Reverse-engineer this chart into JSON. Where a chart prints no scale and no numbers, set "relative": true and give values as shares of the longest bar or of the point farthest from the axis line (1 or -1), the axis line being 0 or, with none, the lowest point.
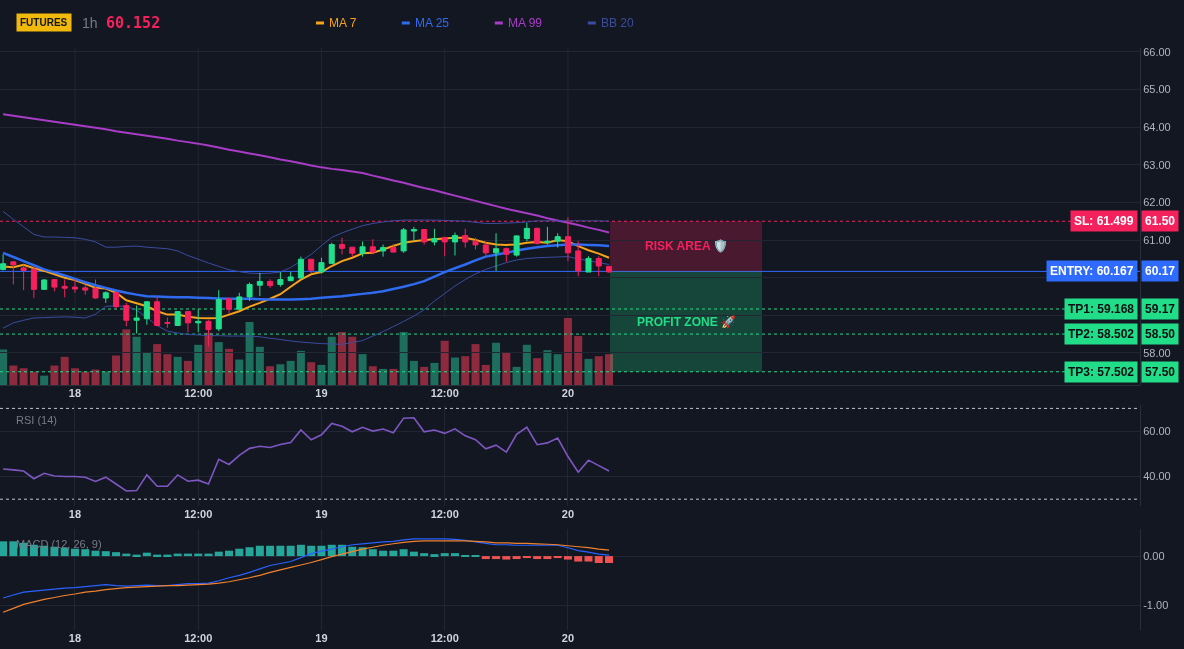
{
  "chart_data": [
    {
      "type": "bar",
      "relative": true,
      "tick_labels": false,
      "categories": [
        null,
        null,
        null,
        null,
        null,
        null,
        null,
        null,
        null,
        null,
        null,
        null,
        null,
        null,
        null,
        null,
        null,
        null,
        null,
        null,
        null,
        null,
        null,
        null,
        null,
        null,
        null,
        null,
        null,
        null,
        null,
        null,
        null,
        null,
        null,
        null,
        null,
        null,
        null,
        null,
        null,
        null,
        null,
        null,
        null,
        null,
        null,
        null,
        null,
        null,
        null,
        null,
        null,
        null,
        null,
        null,
        null,
        null,
        null,
        null
      ],
      "values": [
        0.53,
        0.29,
        0.25,
        0.2,
        0.14,
        0.29,
        0.42,
        0.25,
        0.2,
        0.23,
        0.2,
        0.44,
        0.83,
        0.72,
        0.49,
        0.61,
        0.46,
        0.42,
        0.36,
        0.6,
        0.78,
        0.64,
        0.54,
        0.38,
        0.94,
        0.57,
        0.28,
        0.31,
        0.36,
        0.51,
        0.34,
        0.3,
        0.72,
        0.79,
        0.72,
        0.46,
        0.28,
        0.24,
        0.24,
        0.79,
        0.36,
        0.27,
        0.33,
        0.66,
        0.41,
        0.43,
        0.61,
        0.3,
        0.63,
        0.48,
        0.27,
        0.6,
        0.4,
        0.52,
        0.46,
        1,
        0.73,
        0.39,
        0.43,
        0.46
      ],
      "colors": [
        "#1e6e5d",
        "#8e2a3e",
        "#8e2a3e",
        "#8e2a3e",
        "#1e6e5d",
        "#8e2a3e",
        "#8e2a3e",
        "#8e2a3e",
        "#8e2a3e",
        "#8e2a3e",
        "#1e6e5d",
        "#8e2a3e",
        "#8e2a3e",
        "#1e6e5d",
        "#1e6e5d",
        "#8e2a3e",
        "#8e2a3e",
        "#1e6e5d",
        "#8e2a3e",
        "#1e6e5d",
        "#8e2a3e",
        "#1e6e5d",
        "#8e2a3e",
        "#1e6e5d",
        "#1e6e5d",
        "#1e6e5d",
        "#8e2a3e",
        "#1e6e5d",
        "#1e6e5d",
        "#1e6e5d",
        "#8e2a3e",
        "#1e6e5d",
        "#1e6e5d",
        "#8e2a3e",
        "#8e2a3e",
        "#1e6e5d",
        "#8e2a3e",
        "#1e6e5d",
        "#8e2a3e",
        "#1e6e5d",
        "#1e6e5d",
        "#8e2a3e",
        "#1e6e5d",
        "#8e2a3e",
        "#1e6e5d",
        "#8e2a3e",
        "#8e2a3e",
        "#8e2a3e",
        "#1e6e5d",
        "#8e2a3e",
        "#1e6e5d",
        "#1e6e5d",
        "#8e2a3e",
        "#1e6e5d",
        "#1e6e5d",
        "#8e2a3e",
        "#8e2a3e",
        "#1e6e5d",
        "#8e2a3e",
        "#8e2a3e"
      ]
    },
    {
      "type": "candlestick",
      "title": "FUTURES",
      "subtitle": "1h",
      "categories": [
        null,
        null,
        null,
        null,
        null,
        null,
        null,
        "18",
        null,
        null,
        null,
        null,
        null,
        null,
        null,
        null,
        null,
        null,
        null,
        "12:00",
        null,
        null,
        null,
        null,
        null,
        null,
        null,
        null,
        null,
        null,
        null,
        "19",
        null,
        null,
        null,
        null,
        null,
        null,
        null,
        null,
        null,
        null,
        null,
        "12:00",
        null,
        null,
        null,
        null,
        null,
        null,
        null,
        null,
        null,
        null,
        null,
        "20",
        null,
        null,
        null,
        null
      ],
      "ohlc": [
        [
          60.22,
          60.62,
          60.19,
          60.37
        ],
        [
          60.42,
          60.44,
          59.82,
          60.34
        ],
        [
          60.26,
          60.35,
          59.67,
          60.19
        ],
        [
          60.22,
          60.3,
          59.46,
          59.69
        ],
        [
          59.69,
          59.96,
          59.69,
          59.94
        ],
        [
          59.95,
          59.96,
          59.64,
          59.75
        ],
        [
          59.77,
          59.95,
          59.48,
          59.72
        ],
        [
          59.75,
          59.95,
          59.6,
          59.7
        ],
        [
          59.73,
          59.82,
          59.55,
          59.67
        ],
        [
          59.72,
          59.95,
          59.44,
          59.46
        ],
        [
          59.46,
          59.64,
          59.33,
          59.6
        ],
        [
          59.6,
          59.62,
          59.16,
          59.23
        ],
        [
          59.26,
          59.33,
          58.71,
          58.87
        ],
        [
          58.87,
          59.26,
          58.52,
          58.93
        ],
        [
          58.91,
          59.38,
          58.75,
          59.36
        ],
        [
          59.36,
          59.49,
          58.71,
          58.73
        ],
        [
          58.81,
          58.94,
          58.67,
          58.79
        ],
        [
          58.73,
          59.11,
          58.73,
          59.1
        ],
        [
          59.1,
          59.11,
          58.55,
          58.8
        ],
        [
          58.8,
          59.16,
          58.55,
          58.84
        ],
        [
          58.84,
          58.87,
          58.18,
          58.62
        ],
        [
          58.64,
          59.67,
          58.58,
          59.42
        ],
        [
          59.44,
          59.47,
          59.05,
          59.16
        ],
        [
          59.16,
          59.6,
          59.16,
          59.49
        ],
        [
          59.49,
          59.87,
          59.38,
          59.82
        ],
        [
          59.8,
          60.13,
          59.51,
          59.9
        ],
        [
          59.9,
          59.96,
          59.73,
          59.79
        ],
        [
          59.82,
          60.15,
          59.76,
          59.95
        ],
        [
          59.92,
          60.15,
          59.91,
          60.02
        ],
        [
          59.99,
          60.56,
          59.99,
          60.49
        ],
        [
          60.49,
          60.5,
          60.11,
          60.2
        ],
        [
          60.15,
          60.53,
          60.11,
          60.4
        ],
        [
          60.38,
          60.93,
          60.38,
          60.88
        ],
        [
          60.88,
          61.06,
          60.62,
          60.78
        ],
        [
          60.81,
          60.81,
          60.56,
          60.65
        ],
        [
          60.65,
          60.96,
          60.56,
          60.82
        ],
        [
          60.82,
          61.02,
          60.62,
          60.68
        ],
        [
          60.71,
          60.88,
          60.56,
          60.8
        ],
        [
          60.8,
          60.9,
          60.66,
          60.68
        ],
        [
          60.71,
          61.32,
          60.66,
          61.27
        ],
        [
          61.24,
          61.35,
          60.97,
          61.28
        ],
        [
          61.28,
          61.28,
          60.88,
          60.95
        ],
        [
          60.95,
          61.3,
          60.86,
          61.04
        ],
        [
          61.06,
          61.09,
          60.57,
          60.95
        ],
        [
          60.95,
          61.2,
          60.59,
          61.12
        ],
        [
          61.12,
          61.3,
          60.8,
          60.95
        ],
        [
          60.97,
          61.06,
          60.75,
          60.87
        ],
        [
          60.87,
          60.97,
          60.58,
          60.66
        ],
        [
          60.66,
          61.18,
          60.18,
          60.77
        ],
        [
          60.77,
          60.8,
          60.42,
          60.62
        ],
        [
          60.6,
          61.12,
          60.56,
          61.11
        ],
        [
          61.04,
          61.46,
          60.97,
          61.31
        ],
        [
          61.31,
          61.33,
          60.88,
          60.91
        ],
        [
          60.93,
          61.35,
          60.88,
          60.97
        ],
        [
          60.97,
          61.18,
          60.8,
          61.09
        ],
        [
          61.09,
          61.6,
          60.44,
          60.66
        ],
        [
          60.71,
          60.97,
          60.04,
          60.18
        ],
        [
          60.15,
          60.57,
          60.15,
          60.51
        ],
        [
          60.51,
          60.57,
          60.04,
          60.31
        ],
        [
          60.3,
          60.31,
          60.13,
          60.152
        ]
      ],
      "colors": [
        "#20e08c",
        "#f5215d",
        "#f5215d",
        "#f5215d",
        "#20e08c",
        "#f5215d",
        "#f5215d",
        "#f5215d",
        "#f5215d",
        "#f5215d",
        "#20e08c",
        "#f5215d",
        "#f5215d",
        "#20e08c",
        "#20e08c",
        "#f5215d",
        "#f5215d",
        "#20e08c",
        "#f5215d",
        "#20e08c",
        "#f5215d",
        "#20e08c",
        "#f5215d",
        "#20e08c",
        "#20e08c",
        "#20e08c",
        "#f5215d",
        "#20e08c",
        "#20e08c",
        "#20e08c",
        "#f5215d",
        "#20e08c",
        "#20e08c",
        "#f5215d",
        "#f5215d",
        "#20e08c",
        "#f5215d",
        "#20e08c",
        "#f5215d",
        "#20e08c",
        "#20e08c",
        "#f5215d",
        "#20e08c",
        "#f5215d",
        "#20e08c",
        "#f5215d",
        "#f5215d",
        "#f5215d",
        "#20e08c",
        "#f5215d",
        "#20e08c",
        "#20e08c",
        "#f5215d",
        "#20e08c",
        "#20e08c",
        "#f5215d",
        "#f5215d",
        "#20e08c",
        "#f5215d",
        "#f5215d"
      ],
      "series": [
        {
          "name": "MA 7",
          "type": "line",
          "color": "#f7a21b",
          "values": [
            60.3,
            60.28,
            60.34,
            60.25,
            60.18,
            60.09,
            60.0,
            59.94,
            59.84,
            59.73,
            59.71,
            59.6,
            59.4,
            59.32,
            59.24,
            59.11,
            59.02,
            59.02,
            58.96,
            58.93,
            58.92,
            58.93,
            59.02,
            59.11,
            59.23,
            59.33,
            59.44,
            59.56,
            59.76,
            59.95,
            60.09,
            60.15,
            60.31,
            60.44,
            60.53,
            60.65,
            60.66,
            60.75,
            60.84,
            60.93,
            60.97,
            61.0,
            61.02,
            61.04,
            61.06,
            61.06,
            61.0,
            60.93,
            60.88,
            60.87,
            60.88,
            60.93,
            60.95,
            60.93,
            61.0,
            60.97,
            60.84,
            60.73,
            60.64,
            60.53
          ]
        },
        {
          "name": "MA 25",
          "type": "line",
          "color": "#2f6bf0",
          "values": [
            60.66,
            60.55,
            60.44,
            60.33,
            60.22,
            60.14,
            60.06,
            59.97,
            59.88,
            59.8,
            59.73,
            59.66,
            59.6,
            59.55,
            59.51,
            59.5,
            59.49,
            59.48,
            59.48,
            59.47,
            59.46,
            59.45,
            59.44,
            59.44,
            59.44,
            59.43,
            59.42,
            59.42,
            59.42,
            59.43,
            59.44,
            59.47,
            59.49,
            59.51,
            59.54,
            59.57,
            59.6,
            59.64,
            59.7,
            59.76,
            59.83,
            59.91,
            60.03,
            60.15,
            60.25,
            60.35,
            60.46,
            60.56,
            60.61,
            60.66,
            60.72,
            60.77,
            60.81,
            60.84,
            60.86,
            60.88,
            60.88,
            60.87,
            60.86,
            60.84
          ]
        },
        {
          "name": "MA 99",
          "type": "line",
          "color": "#a83cc6",
          "values": [
            64.34,
            64.3,
            64.26,
            64.22,
            64.18,
            64.14,
            64.1,
            64.06,
            64.02,
            63.98,
            63.94,
            63.89,
            63.85,
            63.81,
            63.77,
            63.73,
            63.69,
            63.64,
            63.6,
            63.56,
            63.51,
            63.46,
            63.4,
            63.35,
            63.3,
            63.25,
            63.2,
            63.14,
            63.09,
            63.04,
            62.98,
            62.93,
            62.89,
            62.86,
            62.82,
            62.78,
            62.71,
            62.65,
            62.58,
            62.52,
            62.45,
            62.38,
            62.32,
            62.25,
            62.18,
            62.11,
            62.04,
            61.97,
            61.9,
            61.83,
            61.77,
            61.71,
            61.65,
            61.58,
            61.52,
            61.46,
            61.4,
            61.33,
            61.27,
            61.2
          ]
        },
        {
          "name": "BB 20",
          "type": "line",
          "color": "#3a4ca0",
          "values": [
            61.76,
            61.55,
            61.35,
            61.15,
            61.08,
            61.08,
            61.07,
            61.06,
            61.02,
            60.95,
            60.81,
            60.81,
            60.83,
            60.84,
            60.81,
            60.79,
            60.77,
            60.71,
            60.59,
            60.49,
            60.39,
            60.3,
            60.21,
            60.16,
            60.12,
            60.11,
            60.12,
            60.15,
            60.27,
            60.44,
            60.62,
            60.85,
            61.07,
            61.19,
            61.29,
            61.38,
            61.44,
            61.48,
            61.51,
            61.53,
            61.53,
            61.53,
            61.53,
            61.52,
            61.51,
            61.5,
            61.47,
            61.44,
            61.44,
            61.45,
            61.46,
            61.48,
            61.51,
            61.51,
            61.51,
            61.51,
            61.51,
            61.51,
            61.51,
            61.5
          ]
        },
        {
          "type": "line",
          "color": "#3a4ca0",
          "values": [
            58.66,
            58.8,
            58.87,
            58.93,
            58.94,
            58.95,
            58.96,
            58.95,
            58.93,
            59.03,
            59.24,
            59.25,
            59.24,
            59.14,
            58.94,
            58.73,
            58.58,
            58.53,
            58.49,
            58.48,
            58.46,
            58.46,
            58.45,
            58.45,
            58.45,
            58.43,
            58.39,
            58.36,
            58.32,
            58.29,
            58.27,
            58.25,
            58.24,
            58.23,
            58.28,
            58.33,
            58.45,
            58.57,
            58.7,
            58.84,
            58.98,
            59.15,
            59.38,
            59.58,
            59.78,
            59.95,
            60.1,
            60.22,
            60.31,
            60.4,
            60.47,
            60.51,
            60.53,
            60.54,
            60.55,
            60.56,
            60.5,
            60.45,
            60.4,
            60.35
          ]
        }
      ],
      "ylim": [
        57.15,
        66.1
      ],
      "yticks": [
        {
          "value": 58,
          "label": "58.00"
        },
        {
          "value": 59,
          "label": null
        },
        {
          "value": 60,
          "label": null
        },
        {
          "value": 61,
          "label": "61.00"
        },
        {
          "value": 62,
          "label": "62.00"
        },
        {
          "value": 63,
          "label": "63.00"
        },
        {
          "value": 64,
          "label": "64.00"
        },
        {
          "value": 65,
          "label": "65.00"
        },
        {
          "value": 66,
          "label": "66.00"
        }
      ],
      "grid": true,
      "legend": "top",
      "ref_lines": [
        {
          "axis": "y",
          "value": 61.499,
          "label": "SL: 61.499",
          "color": "#f5215d",
          "line_style": "dotted"
        },
        {
          "axis": "y",
          "value": 60.167,
          "label": "ENTRY: 60.167",
          "color": "#2f6bff",
          "line_style": "solid"
        },
        {
          "axis": "y",
          "value": 59.168,
          "label": "TP1: 59.168",
          "color": "#22dd88",
          "line_style": "dotted"
        },
        {
          "axis": "y",
          "value": 58.502,
          "label": "TP2: 58.502",
          "color": "#22dd88",
          "line_style": "dotted"
        },
        {
          "axis": "y",
          "value": 57.502,
          "label": "TP3: 57.502",
          "color": "#22dd88",
          "line_style": "dotted"
        }
      ],
      "annotations": [
        "60.152",
        "61.50",
        "60.17",
        "59.17",
        "58.50",
        "57.50",
        "RISK AREA 🛡️",
        "PROFIT ZONE 🚀"
      ]
    },
    {
      "type": "line",
      "title": "RSI (14)",
      "categories": [
        null,
        null,
        null,
        null,
        null,
        null,
        null,
        "18",
        null,
        null,
        null,
        null,
        null,
        null,
        null,
        null,
        null,
        null,
        null,
        "12:00",
        null,
        null,
        null,
        null,
        null,
        null,
        null,
        null,
        null,
        null,
        null,
        "19",
        null,
        null,
        null,
        null,
        null,
        null,
        null,
        null,
        null,
        null,
        null,
        "12:00",
        null,
        null,
        null,
        null,
        null,
        null,
        null,
        null,
        null,
        null,
        null,
        "20",
        null,
        null,
        null,
        null
      ],
      "series": [
        {
          "color": "#7e57c2",
          "values": [
            43.3,
            42.9,
            42.4,
            39.0,
            41.4,
            40.2,
            40.0,
            40.0,
            39.7,
            37.8,
            39.7,
            36.7,
            33.6,
            33.8,
            40.7,
            35.7,
            35.7,
            40.7,
            37.9,
            38.4,
            36.7,
            47.6,
            45.3,
            49.3,
            52.4,
            53.3,
            52.8,
            54.1,
            55.0,
            60.5,
            56.2,
            58.4,
            63.4,
            62.1,
            59.7,
            61.7,
            60.0,
            60.9,
            59.3,
            65.7,
            65.9,
            59.7,
            60.5,
            59.0,
            61.0,
            57.9,
            56.2,
            52.2,
            53.8,
            50.7,
            58.6,
            61.7,
            54.0,
            54.8,
            56.9,
            48.8,
            41.9,
            47.2,
            44.8,
            42.4
          ]
        }
      ],
      "ylim": [
        27,
        71.5
      ],
      "yticks": [
        {
          "value": 40,
          "label": "40.00"
        },
        {
          "value": 60,
          "label": "60.00"
        }
      ],
      "grid": true,
      "ref_lines": [
        {
          "axis": "y",
          "value": 70,
          "color": "#c3c6ce",
          "line_style": "dotted"
        },
        {
          "axis": "y",
          "value": 30,
          "color": "#c3c6ce",
          "line_style": "dotted"
        }
      ]
    },
    {
      "type": "bar",
      "title": "MACD (12, 26, 9)",
      "categories": [
        null,
        null,
        null,
        null,
        null,
        null,
        null,
        "18",
        null,
        null,
        null,
        null,
        null,
        null,
        null,
        null,
        null,
        null,
        null,
        "12:00",
        null,
        null,
        null,
        null,
        null,
        null,
        null,
        null,
        null,
        null,
        null,
        "19",
        null,
        null,
        null,
        null,
        null,
        null,
        null,
        null,
        null,
        null,
        null,
        "12:00",
        null,
        null,
        null,
        null,
        null,
        null,
        null,
        null,
        null,
        null,
        null,
        "20",
        null,
        null,
        null,
        null
      ],
      "series": [
        {
          "type": "bar",
          "values": [
            0.3,
            0.3,
            0.27,
            0.23,
            0.21,
            0.19,
            0.17,
            0.15,
            0.14,
            0.11,
            0.1,
            0.08,
            0.05,
            0.03,
            0.07,
            0.03,
            0.03,
            0.05,
            0.05,
            0.05,
            0.05,
            0.09,
            0.11,
            0.15,
            0.18,
            0.21,
            0.21,
            0.21,
            0.21,
            0.23,
            0.21,
            0.21,
            0.23,
            0.23,
            0.19,
            0.18,
            0.14,
            0.11,
            0.11,
            0.14,
            0.09,
            0.06,
            0.04,
            0.06,
            0.06,
            0.02,
            0.01,
            -0.06,
            -0.06,
            -0.07,
            -0.06,
            -0.04,
            -0.06,
            -0.06,
            -0.04,
            -0.07,
            -0.11,
            -0.11,
            -0.14,
            -0.14
          ],
          "colors": [
            "#26a69a",
            "#26a69a",
            "#26a69a",
            "#26a69a",
            "#26a69a",
            "#26a69a",
            "#26a69a",
            "#26a69a",
            "#26a69a",
            "#26a69a",
            "#26a69a",
            "#26a69a",
            "#26a69a",
            "#26a69a",
            "#26a69a",
            "#26a69a",
            "#26a69a",
            "#26a69a",
            "#26a69a",
            "#26a69a",
            "#26a69a",
            "#26a69a",
            "#26a69a",
            "#26a69a",
            "#26a69a",
            "#26a69a",
            "#26a69a",
            "#26a69a",
            "#26a69a",
            "#26a69a",
            "#26a69a",
            "#26a69a",
            "#26a69a",
            "#26a69a",
            "#26a69a",
            "#26a69a",
            "#26a69a",
            "#26a69a",
            "#26a69a",
            "#26a69a",
            "#26a69a",
            "#26a69a",
            "#26a69a",
            "#26a69a",
            "#26a69a",
            "#26a69a",
            "#26a69a",
            "#ef5350",
            "#ef5350",
            "#ef5350",
            "#ef5350",
            "#ef5350",
            "#ef5350",
            "#ef5350",
            "#ef5350",
            "#ef5350",
            "#ef5350",
            "#ef5350",
            "#ef5350",
            "#ef5350"
          ]
        },
        {
          "type": "line",
          "color": "#2962ff",
          "values": [
            -0.85,
            -0.79,
            -0.73,
            -0.71,
            -0.69,
            -0.67,
            -0.65,
            -0.64,
            -0.62,
            -0.6,
            -0.58,
            -0.6,
            -0.61,
            -0.6,
            -0.59,
            -0.6,
            -0.6,
            -0.58,
            -0.56,
            -0.56,
            -0.55,
            -0.5,
            -0.44,
            -0.39,
            -0.33,
            -0.26,
            -0.19,
            -0.15,
            -0.11,
            -0.03,
            0.05,
            0.1,
            0.14,
            0.19,
            0.23,
            0.25,
            0.27,
            0.29,
            0.3,
            0.33,
            0.35,
            0.35,
            0.35,
            0.35,
            0.34,
            0.32,
            0.29,
            0.26,
            0.23,
            0.23,
            0.22,
            0.22,
            0.22,
            0.22,
            0.22,
            0.17,
            0.11,
            0.08,
            0.04,
            0.02
          ]
        },
        {
          "type": "line",
          "color": "#f0812d",
          "values": [
            -1.14,
            -1.06,
            -0.98,
            -0.93,
            -0.88,
            -0.84,
            -0.8,
            -0.77,
            -0.73,
            -0.71,
            -0.68,
            -0.66,
            -0.64,
            -0.63,
            -0.62,
            -0.61,
            -0.6,
            -0.6,
            -0.59,
            -0.58,
            -0.57,
            -0.55,
            -0.52,
            -0.48,
            -0.44,
            -0.39,
            -0.33,
            -0.28,
            -0.23,
            -0.18,
            -0.13,
            -0.07,
            -0.01,
            0.04,
            0.09,
            0.14,
            0.18,
            0.22,
            0.25,
            0.28,
            0.3,
            0.31,
            0.31,
            0.31,
            0.31,
            0.31,
            0.3,
            0.29,
            0.27,
            0.27,
            0.26,
            0.26,
            0.25,
            0.24,
            0.23,
            0.21,
            0.19,
            0.17,
            0.14,
            0.12
          ]
        }
      ],
      "ylim": [
        -1.5,
        0.55
      ],
      "yticks": [
        {
          "value": -1,
          "label": "-1.00"
        },
        {
          "value": 0,
          "label": "0.00"
        }
      ],
      "grid": true
    }
  ]
}
